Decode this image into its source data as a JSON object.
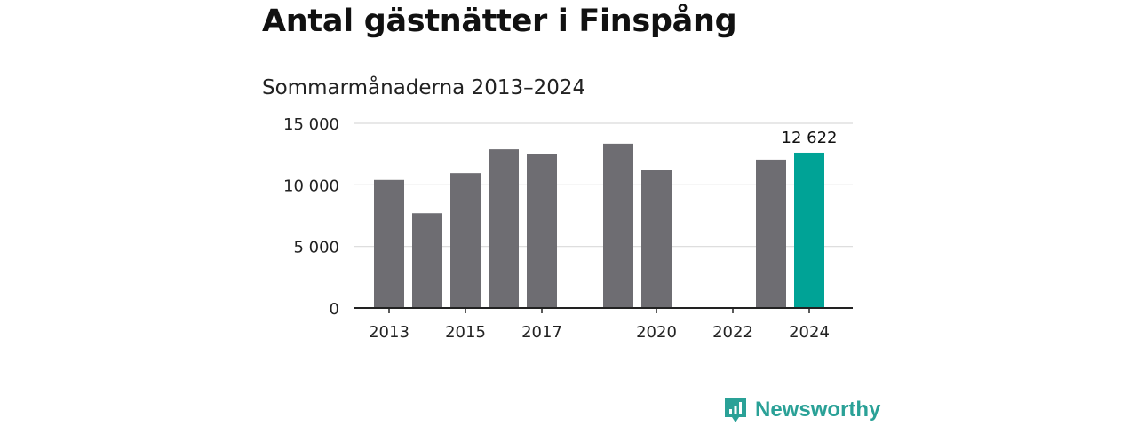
{
  "title": "Antal gästnätter i Finspång",
  "subtitle": "Sommarmånaderna 2013–2024",
  "brand": {
    "name": "Newsworthy",
    "icon": "newsworthy-logo-icon",
    "color": "#2aa197"
  },
  "chart_data": {
    "type": "bar",
    "categories": [
      "2013",
      "2014",
      "2015",
      "2016",
      "2017",
      "2018",
      "2019",
      "2020",
      "2021",
      "2022",
      "2023",
      "2024"
    ],
    "values": [
      10400,
      7700,
      10950,
      12900,
      12500,
      null,
      13350,
      11200,
      null,
      null,
      12050,
      12622
    ],
    "ylim": [
      0,
      15000
    ],
    "yticks": [
      {
        "value": 0,
        "label": "0"
      },
      {
        "value": 5000,
        "label": "5 000"
      },
      {
        "value": 10000,
        "label": "10 000"
      },
      {
        "value": 15000,
        "label": "15 000"
      }
    ],
    "xtick_labels": [
      "2013",
      "2015",
      "2017",
      "2020",
      "2022",
      "2024"
    ],
    "highlight": {
      "category": "2024",
      "label": "12 622"
    },
    "grid": true,
    "colors": {
      "bar": "#6e6d72",
      "highlight": "#00a396",
      "grid": "#d9d9d9",
      "axis": "#222222"
    }
  }
}
